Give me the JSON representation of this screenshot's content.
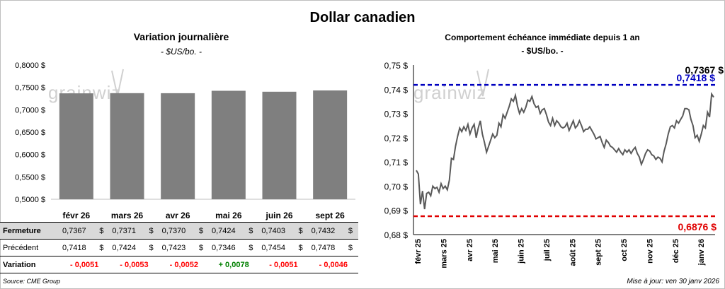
{
  "main_title": "Dollar canadien",
  "left_chart": {
    "title": "Variation  journalière",
    "subtitle": "- $US/bo. -",
    "watermark": "grainwiz",
    "chart_data": {
      "type": "bar",
      "categories": [
        "févr 26",
        "mars 26",
        "avr 26",
        "mai 26",
        "juin 26",
        "sept 26"
      ],
      "values": [
        0.7367,
        0.7371,
        0.737,
        0.7424,
        0.7403,
        0.7432
      ],
      "ylim": [
        0.5,
        0.8
      ],
      "yticks": [
        "0,8000 $",
        "0,7500 $",
        "0,7000 $",
        "0,6500 $",
        "0,6000 $",
        "0,5500 $",
        "0,5000 $"
      ],
      "bar_color": "#7f7f7f"
    }
  },
  "table": {
    "rows": [
      {
        "label": "Fermeture",
        "cells": [
          [
            "0,7367",
            "$"
          ],
          [
            "0,7371",
            "$"
          ],
          [
            "0,7370",
            "$"
          ],
          [
            "0,7424",
            "$"
          ],
          [
            "0,7403",
            "$"
          ],
          [
            "0,7432",
            "$"
          ]
        ]
      },
      {
        "label": "Précédent",
        "cells": [
          [
            "0,7418",
            "$"
          ],
          [
            "0,7424",
            "$"
          ],
          [
            "0,7423",
            "$"
          ],
          [
            "0,7346",
            "$"
          ],
          [
            "0,7454",
            "$"
          ],
          [
            "0,7478",
            "$"
          ]
        ]
      },
      {
        "label": "Variation",
        "cells": [
          "- 0,0051",
          "- 0,0053",
          "- 0,0052",
          "+ 0,0078",
          "- 0,0051",
          "- 0,0046"
        ],
        "signs": [
          "neg",
          "neg",
          "neg",
          "pos",
          "neg",
          "neg"
        ]
      }
    ]
  },
  "right_chart": {
    "title": "Comportement échéance immédiate depuis 1 an",
    "subtitle": "- $US/bo. -",
    "watermark": "grainwiz",
    "labels": {
      "last": "0,7367 $",
      "high": "0,7418 $",
      "low": "0,6876 $"
    },
    "chart_data": {
      "type": "line",
      "ylim": [
        0.68,
        0.75
      ],
      "yticks": [
        "0,75 $",
        "0,74 $",
        "0,73 $",
        "0,72 $",
        "0,71 $",
        "0,70 $",
        "0,69 $",
        "0,68 $"
      ],
      "x_labels": [
        "févr 25",
        "mars 25",
        "avr 25",
        "mai 25",
        "juin 25",
        "juil 25",
        "août 25",
        "sept 25",
        "oct 25",
        "nov 25",
        "déc 25",
        "janv 26"
      ],
      "series": [
        {
          "color": "#595959",
          "values": [
            0.7065,
            0.705,
            0.6925,
            0.698,
            0.6905,
            0.697,
            0.6975,
            0.696,
            0.7,
            0.699,
            0.6995,
            0.6975,
            0.701,
            0.699,
            0.7,
            0.6985,
            0.7025,
            0.7115,
            0.711,
            0.7165,
            0.7205,
            0.724,
            0.7225,
            0.7245,
            0.723,
            0.7255,
            0.7215,
            0.724,
            0.7255,
            0.72,
            0.724,
            0.727,
            0.7215,
            0.718,
            0.714,
            0.7165,
            0.719,
            0.7215,
            0.72,
            0.721,
            0.726,
            0.7245,
            0.7295,
            0.728,
            0.7305,
            0.733,
            0.736,
            0.735,
            0.7375,
            0.733,
            0.73,
            0.732,
            0.7305,
            0.7325,
            0.7355,
            0.735,
            0.737,
            0.734,
            0.7325,
            0.733,
            0.73,
            0.7315,
            0.732,
            0.7295,
            0.7265,
            0.725,
            0.728,
            0.725,
            0.727,
            0.726,
            0.7245,
            0.724,
            0.7245,
            0.726,
            0.723,
            0.725,
            0.727,
            0.724,
            0.725,
            0.727,
            0.725,
            0.7225,
            0.7235,
            0.7235,
            0.7245,
            0.723,
            0.7215,
            0.7195,
            0.72,
            0.7205,
            0.718,
            0.716,
            0.719,
            0.718,
            0.7165,
            0.716,
            0.715,
            0.714,
            0.7155,
            0.714,
            0.713,
            0.715,
            0.714,
            0.715,
            0.7135,
            0.715,
            0.716,
            0.7135,
            0.712,
            0.709,
            0.711,
            0.7135,
            0.715,
            0.7145,
            0.713,
            0.7125,
            0.711,
            0.712,
            0.7115,
            0.71,
            0.7145,
            0.7175,
            0.7215,
            0.7245,
            0.725,
            0.724,
            0.727,
            0.726,
            0.7275,
            0.729,
            0.732,
            0.732,
            0.7315,
            0.7275,
            0.725,
            0.72,
            0.721,
            0.7185,
            0.7215,
            0.725,
            0.724,
            0.7305,
            0.7285,
            0.738,
            0.7367
          ]
        }
      ],
      "hlines": [
        {
          "value": 0.7418,
          "color": "#0000c0"
        },
        {
          "value": 0.6876,
          "color": "#e00000"
        }
      ]
    }
  },
  "footer": {
    "source": "Source: CME Group",
    "updated": "Mise à jour: ven 30 janv 2026"
  }
}
